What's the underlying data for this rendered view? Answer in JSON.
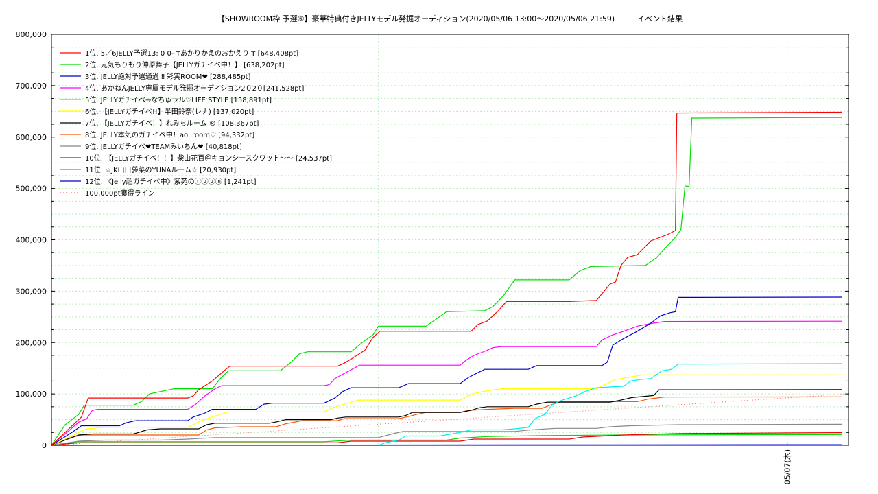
{
  "chart_data": {
    "type": "line",
    "title": "【SHOWROOM枠 予選⑥】豪華特典付きJELLYモデル発掘オーディション(2020/05/06 13:00～2020/05/06 21:59)　　　イベント結果",
    "ylim": [
      0,
      800000
    ],
    "yticks": [
      "0",
      "100,000",
      "200,000",
      "300,000",
      "400,000",
      "500,000",
      "600,000",
      "700,000",
      "800,000"
    ],
    "xlim": [
      0,
      585
    ],
    "xtick": {
      "label": "05/07(木)",
      "x": 540
    },
    "grid": true,
    "legend_position": "top-left",
    "series": [
      {
        "name": "1位. 5／6JELLY予選13: 0 0- ₸あかりかえのおかえり ₸ [648,408pt]",
        "color": "#ff0000",
        "points": [
          [
            0,
            0
          ],
          [
            12,
            30000
          ],
          [
            22,
            55000
          ],
          [
            27,
            92000
          ],
          [
            100,
            92000
          ],
          [
            104,
            96000
          ],
          [
            108,
            108000
          ],
          [
            118,
            125000
          ],
          [
            128,
            148000
          ],
          [
            131,
            154000
          ],
          [
            210,
            154000
          ],
          [
            215,
            160000
          ],
          [
            220,
            168000
          ],
          [
            230,
            185000
          ],
          [
            236,
            210000
          ],
          [
            241,
            222000
          ],
          [
            308,
            222000
          ],
          [
            313,
            235000
          ],
          [
            320,
            242000
          ],
          [
            328,
            262000
          ],
          [
            334,
            280000
          ],
          [
            380,
            280000
          ],
          [
            400,
            282000
          ],
          [
            405,
            298000
          ],
          [
            410,
            314000
          ],
          [
            414,
            318000
          ],
          [
            418,
            350000
          ],
          [
            423,
            366000
          ],
          [
            430,
            371000
          ],
          [
            440,
            398000
          ],
          [
            452,
            410000
          ],
          [
            458,
            418000
          ],
          [
            459,
            647000
          ],
          [
            580,
            648408
          ]
        ]
      },
      {
        "name": "2位. 元気もりもり仲原舞子【JELLYガチイベ中！】 [638,202pt]",
        "color": "#00dd00",
        "points": [
          [
            0,
            0
          ],
          [
            10,
            40000
          ],
          [
            20,
            60000
          ],
          [
            24,
            78000
          ],
          [
            60,
            78000
          ],
          [
            66,
            85000
          ],
          [
            72,
            100000
          ],
          [
            90,
            110000
          ],
          [
            118,
            110000
          ],
          [
            124,
            130000
          ],
          [
            130,
            145000
          ],
          [
            168,
            145000
          ],
          [
            176,
            162000
          ],
          [
            182,
            178000
          ],
          [
            188,
            182000
          ],
          [
            220,
            182000
          ],
          [
            228,
            200000
          ],
          [
            236,
            215000
          ],
          [
            240,
            232000
          ],
          [
            275,
            232000
          ],
          [
            282,
            245000
          ],
          [
            290,
            260000
          ],
          [
            318,
            262000
          ],
          [
            324,
            270000
          ],
          [
            332,
            292000
          ],
          [
            340,
            322000
          ],
          [
            380,
            322000
          ],
          [
            388,
            340000
          ],
          [
            396,
            348000
          ],
          [
            436,
            350000
          ],
          [
            444,
            365000
          ],
          [
            452,
            388000
          ],
          [
            458,
            405000
          ],
          [
            462,
            420000
          ],
          [
            465,
            505000
          ],
          [
            468,
            504000
          ],
          [
            470,
            637000
          ],
          [
            580,
            638202
          ]
        ]
      },
      {
        "name": "3位. JELLY絶対予選通過 ‼ 彩実ROOM❤ [288,485pt]",
        "color": "#0000cc",
        "points": [
          [
            0,
            0
          ],
          [
            15,
            25000
          ],
          [
            22,
            38000
          ],
          [
            50,
            38000
          ],
          [
            55,
            44000
          ],
          [
            62,
            48000
          ],
          [
            100,
            48000
          ],
          [
            104,
            55000
          ],
          [
            112,
            62000
          ],
          [
            118,
            70000
          ],
          [
            150,
            70000
          ],
          [
            156,
            80000
          ],
          [
            162,
            82000
          ],
          [
            200,
            82000
          ],
          [
            208,
            92000
          ],
          [
            214,
            105000
          ],
          [
            220,
            112000
          ],
          [
            255,
            112000
          ],
          [
            262,
            120000
          ],
          [
            300,
            120000
          ],
          [
            306,
            132000
          ],
          [
            312,
            140000
          ],
          [
            318,
            148000
          ],
          [
            350,
            148000
          ],
          [
            356,
            155000
          ],
          [
            404,
            155000
          ],
          [
            408,
            162000
          ],
          [
            412,
            195000
          ],
          [
            420,
            208000
          ],
          [
            430,
            222000
          ],
          [
            440,
            238000
          ],
          [
            447,
            252000
          ],
          [
            454,
            258000
          ],
          [
            458,
            260000
          ],
          [
            460,
            288000
          ],
          [
            580,
            288485
          ]
        ]
      },
      {
        "name": "4位. あかねんJELLY専属モデル発掘オーディション2０2０[241,528pt]",
        "color": "#ff00ff",
        "points": [
          [
            0,
            0
          ],
          [
            10,
            22000
          ],
          [
            20,
            45000
          ],
          [
            26,
            52000
          ],
          [
            30,
            68000
          ],
          [
            34,
            70000
          ],
          [
            100,
            70000
          ],
          [
            106,
            80000
          ],
          [
            112,
            95000
          ],
          [
            120,
            110000
          ],
          [
            125,
            116000
          ],
          [
            200,
            116000
          ],
          [
            204,
            118000
          ],
          [
            208,
            130000
          ],
          [
            215,
            140000
          ],
          [
            222,
            150000
          ],
          [
            226,
            156000
          ],
          [
            300,
            156000
          ],
          [
            304,
            165000
          ],
          [
            310,
            175000
          ],
          [
            318,
            183000
          ],
          [
            324,
            190000
          ],
          [
            330,
            192000
          ],
          [
            400,
            192000
          ],
          [
            404,
            205000
          ],
          [
            412,
            215000
          ],
          [
            420,
            222000
          ],
          [
            430,
            232000
          ],
          [
            440,
            237000
          ],
          [
            450,
            241000
          ],
          [
            580,
            241528
          ]
        ]
      },
      {
        "name": "5位. JELLYガチイベ→なちゅラル♡LIFE STYLE [158,891pt]",
        "color": "#00eeee",
        "points": [
          [
            0,
            0
          ],
          [
            240,
            0
          ],
          [
            245,
            5000
          ],
          [
            255,
            10000
          ],
          [
            260,
            18000
          ],
          [
            285,
            18000
          ],
          [
            300,
            25000
          ],
          [
            308,
            30000
          ],
          [
            330,
            30000
          ],
          [
            340,
            32000
          ],
          [
            350,
            35000
          ],
          [
            355,
            52000
          ],
          [
            362,
            60000
          ],
          [
            368,
            80000
          ],
          [
            375,
            88000
          ],
          [
            385,
            96000
          ],
          [
            392,
            105000
          ],
          [
            400,
            112000
          ],
          [
            420,
            115000
          ],
          [
            425,
            125000
          ],
          [
            432,
            128000
          ],
          [
            440,
            130000
          ],
          [
            448,
            145000
          ],
          [
            455,
            148000
          ],
          [
            460,
            158000
          ],
          [
            580,
            158891
          ]
        ]
      },
      {
        "name": "6位. 【JELLYガチイベ!!】半田鈴奈(レナ) [137,020pt]",
        "color": "#ffff00",
        "points": [
          [
            0,
            0
          ],
          [
            15,
            18000
          ],
          [
            22,
            28000
          ],
          [
            26,
            32000
          ],
          [
            40,
            35000
          ],
          [
            100,
            35000
          ],
          [
            110,
            48000
          ],
          [
            118,
            55000
          ],
          [
            126,
            62000
          ],
          [
            130,
            65000
          ],
          [
            200,
            65000
          ],
          [
            206,
            72000
          ],
          [
            212,
            78000
          ],
          [
            218,
            82000
          ],
          [
            225,
            88000
          ],
          [
            300,
            88000
          ],
          [
            306,
            96000
          ],
          [
            312,
            102000
          ],
          [
            320,
            106000
          ],
          [
            330,
            110000
          ],
          [
            400,
            110000
          ],
          [
            408,
            120000
          ],
          [
            414,
            128000
          ],
          [
            425,
            133000
          ],
          [
            434,
            137000
          ],
          [
            580,
            137020
          ]
        ]
      },
      {
        "name": "7位. 【JELLYガチイベ！】れみちルーム ® [108,367pt]",
        "color": "#000000",
        "points": [
          [
            0,
            0
          ],
          [
            12,
            12000
          ],
          [
            20,
            20000
          ],
          [
            30,
            22000
          ],
          [
            60,
            22000
          ],
          [
            64,
            25000
          ],
          [
            70,
            30000
          ],
          [
            80,
            32000
          ],
          [
            108,
            32000
          ],
          [
            114,
            40000
          ],
          [
            120,
            43000
          ],
          [
            160,
            43000
          ],
          [
            166,
            46000
          ],
          [
            172,
            50000
          ],
          [
            205,
            50000
          ],
          [
            210,
            53000
          ],
          [
            216,
            55000
          ],
          [
            255,
            55000
          ],
          [
            260,
            58000
          ],
          [
            265,
            64000
          ],
          [
            300,
            64000
          ],
          [
            308,
            68000
          ],
          [
            314,
            73000
          ],
          [
            320,
            75000
          ],
          [
            350,
            75000
          ],
          [
            356,
            80000
          ],
          [
            364,
            84000
          ],
          [
            410,
            84000
          ],
          [
            418,
            88000
          ],
          [
            426,
            93000
          ],
          [
            442,
            97000
          ],
          [
            446,
            108000
          ],
          [
            580,
            108367
          ]
        ]
      },
      {
        "name": "8位. JELLY本気のガチイベ中！aoi room♡ [94,332pt]",
        "color": "#ff5500",
        "points": [
          [
            0,
            0
          ],
          [
            14,
            15000
          ],
          [
            22,
            20000
          ],
          [
            108,
            20000
          ],
          [
            114,
            30000
          ],
          [
            120,
            34000
          ],
          [
            140,
            36000
          ],
          [
            165,
            36000
          ],
          [
            172,
            42000
          ],
          [
            184,
            48000
          ],
          [
            210,
            48000
          ],
          [
            215,
            52000
          ],
          [
            255,
            52000
          ],
          [
            262,
            56000
          ],
          [
            268,
            60000
          ],
          [
            275,
            64000
          ],
          [
            300,
            64000
          ],
          [
            306,
            68000
          ],
          [
            320,
            70000
          ],
          [
            340,
            72000
          ],
          [
            360,
            72000
          ],
          [
            366,
            78000
          ],
          [
            374,
            85000
          ],
          [
            430,
            85000
          ],
          [
            438,
            90000
          ],
          [
            450,
            94000
          ],
          [
            580,
            94332
          ]
        ]
      },
      {
        "name": "9位. JELLYガチイベ❤TEAMみいちん❤ [40,818pt]",
        "color": "#888888",
        "points": [
          [
            0,
            0
          ],
          [
            20,
            8000
          ],
          [
            40,
            10000
          ],
          [
            80,
            10000
          ],
          [
            100,
            12000
          ],
          [
            120,
            15000
          ],
          [
            240,
            15000
          ],
          [
            250,
            22000
          ],
          [
            258,
            27000
          ],
          [
            340,
            27000
          ],
          [
            352,
            30000
          ],
          [
            370,
            33000
          ],
          [
            400,
            33000
          ],
          [
            410,
            36000
          ],
          [
            425,
            38000
          ],
          [
            460,
            40000
          ],
          [
            580,
            40818
          ]
        ]
      },
      {
        "name": "10位. 【JELLYガチイベ！！】柴山花百＠キョンシースクワット〜〜 [24,537pt]",
        "color": "#ee0000",
        "points": [
          [
            0,
            0
          ],
          [
            20,
            5000
          ],
          [
            210,
            5000
          ],
          [
            220,
            8000
          ],
          [
            300,
            8000
          ],
          [
            310,
            12000
          ],
          [
            380,
            12000
          ],
          [
            390,
            16000
          ],
          [
            420,
            20000
          ],
          [
            460,
            23000
          ],
          [
            580,
            24537
          ]
        ]
      },
      {
        "name": "11位. ☆JK山口夢菜のYUNAルーム☆ [20,930pt]",
        "color": "#00dd00",
        "points": [
          [
            0,
            0
          ],
          [
            20,
            7000
          ],
          [
            200,
            7000
          ],
          [
            220,
            10000
          ],
          [
            290,
            10000
          ],
          [
            300,
            14000
          ],
          [
            320,
            17000
          ],
          [
            360,
            19000
          ],
          [
            420,
            20000
          ],
          [
            580,
            20930
          ]
        ]
      },
      {
        "name": "12位. 《Jelly超ガチイベ中》紫苑のⓡⓞⓞⓜ [1,241pt]",
        "color": "#0000cc",
        "points": [
          [
            0,
            0
          ],
          [
            200,
            500
          ],
          [
            400,
            900
          ],
          [
            580,
            1241
          ]
        ]
      }
    ],
    "reference_line": {
      "name": "100,000pt獲得ライン",
      "color": "#ff6666",
      "points": [
        [
          0,
          0
        ],
        [
          585,
          100000
        ]
      ]
    }
  }
}
